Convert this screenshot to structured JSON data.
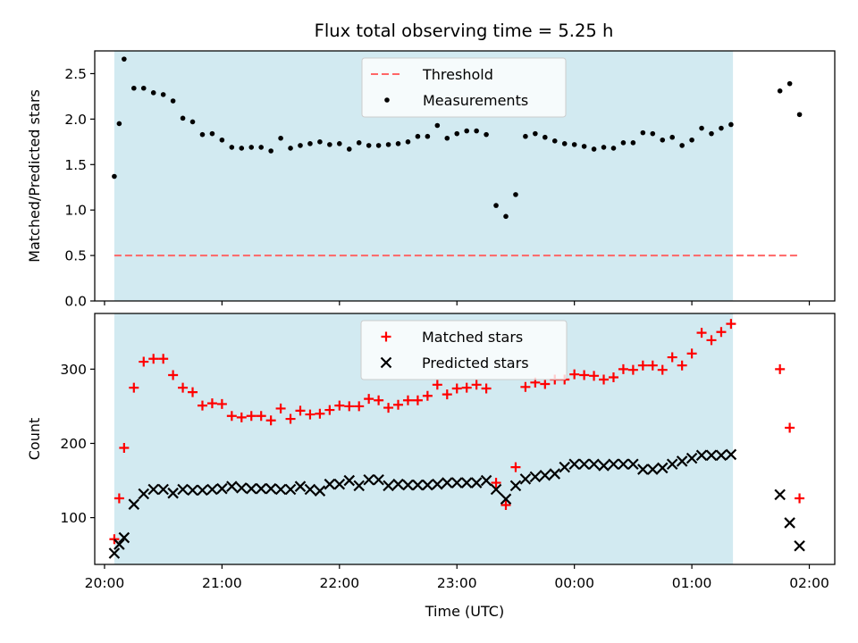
{
  "title": "Flux total observing time = 5.25 h",
  "colors": {
    "span": "#add8e6",
    "threshold": "#ff6666",
    "measurement": "#000000",
    "matched": "#ff0000",
    "predicted": "#000000"
  },
  "chart_data": [
    {
      "type": "scatter",
      "ylabel": "Matched/Predicted stars",
      "ylim": [
        0,
        2.75
      ],
      "yticks": [
        "0.0",
        "0.5",
        "1.0",
        "1.5",
        "2.0",
        "2.5"
      ],
      "xlim": [
        "19:55",
        "02:13"
      ],
      "xticks": [
        "20:00",
        "21:00",
        "22:00",
        "23:00",
        "00:00",
        "01:00",
        "02:00"
      ],
      "shaded_span": [
        "20:05",
        "01:21"
      ],
      "legend": {
        "position": "top-center",
        "entries": [
          "Threshold",
          "Measurements"
        ]
      },
      "threshold": {
        "name": "Threshold",
        "y": 0.5,
        "x": [
          "20:05",
          "01:55"
        ],
        "style": "dashed"
      },
      "series": [
        {
          "name": "Measurements",
          "marker": "dot",
          "points": [
            [
              "20:05",
              1.37
            ],
            [
              "20:07.5",
              1.95
            ],
            [
              "20:10",
              2.66
            ],
            [
              "20:15",
              2.34
            ],
            [
              "20:20",
              2.34
            ],
            [
              "20:25",
              2.29
            ],
            [
              "20:30",
              2.27
            ],
            [
              "20:35",
              2.2
            ],
            [
              "20:40",
              2.01
            ],
            [
              "20:45",
              1.97
            ],
            [
              "20:50",
              1.83
            ],
            [
              "20:55",
              1.84
            ],
            [
              "21:00",
              1.77
            ],
            [
              "21:05",
              1.69
            ],
            [
              "21:10",
              1.68
            ],
            [
              "21:15",
              1.69
            ],
            [
              "21:20",
              1.69
            ],
            [
              "21:25",
              1.65
            ],
            [
              "21:30",
              1.79
            ],
            [
              "21:35",
              1.68
            ],
            [
              "21:40",
              1.71
            ],
            [
              "21:45",
              1.73
            ],
            [
              "21:50",
              1.75
            ],
            [
              "21:55",
              1.72
            ],
            [
              "22:00",
              1.73
            ],
            [
              "22:05",
              1.67
            ],
            [
              "22:10",
              1.74
            ],
            [
              "22:15",
              1.71
            ],
            [
              "22:20",
              1.71
            ],
            [
              "22:25",
              1.72
            ],
            [
              "22:30",
              1.73
            ],
            [
              "22:35",
              1.75
            ],
            [
              "22:40",
              1.81
            ],
            [
              "22:45",
              1.81
            ],
            [
              "22:50",
              1.93
            ],
            [
              "22:55",
              1.79
            ],
            [
              "23:00",
              1.84
            ],
            [
              "23:05",
              1.87
            ],
            [
              "23:10",
              1.87
            ],
            [
              "23:15",
              1.83
            ],
            [
              "23:20",
              1.05
            ],
            [
              "23:25",
              0.93
            ],
            [
              "23:30",
              1.17
            ],
            [
              "23:35",
              1.81
            ],
            [
              "23:40",
              1.84
            ],
            [
              "23:45",
              1.8
            ],
            [
              "23:50",
              1.76
            ],
            [
              "23:55",
              1.73
            ],
            [
              "00:00",
              1.72
            ],
            [
              "00:05",
              1.7
            ],
            [
              "00:10",
              1.67
            ],
            [
              "00:15",
              1.69
            ],
            [
              "00:20",
              1.68
            ],
            [
              "00:25",
              1.74
            ],
            [
              "00:30",
              1.74
            ],
            [
              "00:35",
              1.85
            ],
            [
              "00:40",
              1.84
            ],
            [
              "00:45",
              1.77
            ],
            [
              "00:50",
              1.8
            ],
            [
              "00:55",
              1.71
            ],
            [
              "01:00",
              1.77
            ],
            [
              "01:05",
              1.9
            ],
            [
              "01:10",
              1.84
            ],
            [
              "01:15",
              1.9
            ],
            [
              "01:20",
              1.94
            ],
            [
              "01:45",
              2.31
            ],
            [
              "01:50",
              2.39
            ],
            [
              "01:55",
              2.05
            ]
          ]
        }
      ]
    },
    {
      "type": "scatter",
      "xlabel": "Time (UTC)",
      "ylabel": "Count",
      "ylim": [
        37,
        375
      ],
      "yticks": [
        "100",
        "200",
        "300"
      ],
      "xlim": [
        "19:55",
        "02:13"
      ],
      "xticks": [
        "20:00",
        "21:00",
        "22:00",
        "23:00",
        "00:00",
        "01:00",
        "02:00"
      ],
      "shaded_span": [
        "20:05",
        "01:21"
      ],
      "legend": {
        "position": "top-center",
        "entries": [
          "Matched stars",
          "Predicted stars"
        ]
      },
      "series": [
        {
          "name": "Matched stars",
          "marker": "plus",
          "points": [
            [
              "20:05",
              71
            ],
            [
              "20:07.5",
              126
            ],
            [
              "20:10",
              194
            ],
            [
              "20:15",
              275
            ],
            [
              "20:20",
              310
            ],
            [
              "20:25",
              314
            ],
            [
              "20:30",
              314
            ],
            [
              "20:35",
              292
            ],
            [
              "20:40",
              275
            ],
            [
              "20:45",
              269
            ],
            [
              "20:50",
              251
            ],
            [
              "20:55",
              254
            ],
            [
              "21:00",
              253
            ],
            [
              "21:05",
              237
            ],
            [
              "21:10",
              235
            ],
            [
              "21:15",
              237
            ],
            [
              "21:20",
              237
            ],
            [
              "21:25",
              231
            ],
            [
              "21:30",
              247
            ],
            [
              "21:35",
              233
            ],
            [
              "21:40",
              244
            ],
            [
              "21:45",
              239
            ],
            [
              "21:50",
              240
            ],
            [
              "21:55",
              245
            ],
            [
              "22:00",
              251
            ],
            [
              "22:05",
              250
            ],
            [
              "22:10",
              250
            ],
            [
              "22:15",
              260
            ],
            [
              "22:20",
              258
            ],
            [
              "22:25",
              248
            ],
            [
              "22:30",
              252
            ],
            [
              "22:35",
              258
            ],
            [
              "22:40",
              258
            ],
            [
              "22:45",
              264
            ],
            [
              "22:50",
              279
            ],
            [
              "22:55",
              266
            ],
            [
              "23:00",
              274
            ],
            [
              "23:05",
              275
            ],
            [
              "23:10",
              279
            ],
            [
              "23:15",
              274
            ],
            [
              "23:20",
              147
            ],
            [
              "23:25",
              117
            ],
            [
              "23:30",
              168
            ],
            [
              "23:35",
              276
            ],
            [
              "23:40",
              282
            ],
            [
              "23:45",
              280
            ],
            [
              "23:50",
              286
            ],
            [
              "23:55",
              286
            ],
            [
              "00:00",
              293
            ],
            [
              "00:05",
              292
            ],
            [
              "00:10",
              291
            ],
            [
              "00:15",
              286
            ],
            [
              "00:20",
              289
            ],
            [
              "00:25",
              300
            ],
            [
              "00:30",
              299
            ],
            [
              "00:35",
              305
            ],
            [
              "00:40",
              305
            ],
            [
              "00:45",
              299
            ],
            [
              "00:50",
              316
            ],
            [
              "00:55",
              305
            ],
            [
              "01:00",
              321
            ],
            [
              "01:05",
              349
            ],
            [
              "01:10",
              339
            ],
            [
              "01:15",
              350
            ],
            [
              "01:20",
              361
            ],
            [
              "01:45",
              300
            ],
            [
              "01:50",
              221
            ],
            [
              "01:55",
              126
            ]
          ]
        },
        {
          "name": "Predicted stars",
          "marker": "x",
          "points": [
            [
              "20:05",
              52
            ],
            [
              "20:07.5",
              64
            ],
            [
              "20:10",
              73
            ],
            [
              "20:15",
              118
            ],
            [
              "20:20",
              132
            ],
            [
              "20:25",
              138
            ],
            [
              "20:30",
              138
            ],
            [
              "20:35",
              133
            ],
            [
              "20:40",
              138
            ],
            [
              "20:45",
              137
            ],
            [
              "20:50",
              137
            ],
            [
              "20:55",
              138
            ],
            [
              "21:00",
              139
            ],
            [
              "21:05",
              142
            ],
            [
              "21:10",
              140
            ],
            [
              "21:15",
              139
            ],
            [
              "21:20",
              139
            ],
            [
              "21:25",
              139
            ],
            [
              "21:30",
              138
            ],
            [
              "21:35",
              138
            ],
            [
              "21:40",
              142
            ],
            [
              "21:45",
              138
            ],
            [
              "21:50",
              136
            ],
            [
              "21:55",
              145
            ],
            [
              "22:00",
              145
            ],
            [
              "22:05",
              150
            ],
            [
              "22:10",
              143
            ],
            [
              "22:15",
              151
            ],
            [
              "22:20",
              151
            ],
            [
              "22:25",
              143
            ],
            [
              "22:30",
              145
            ],
            [
              "22:35",
              144
            ],
            [
              "22:40",
              144
            ],
            [
              "22:45",
              144
            ],
            [
              "22:50",
              145
            ],
            [
              "22:55",
              147
            ],
            [
              "23:00",
              147
            ],
            [
              "23:05",
              147
            ],
            [
              "23:10",
              147
            ],
            [
              "23:15",
              150
            ],
            [
              "23:20",
              138
            ],
            [
              "23:25",
              125
            ],
            [
              "23:30",
              143
            ],
            [
              "23:35",
              152
            ],
            [
              "23:40",
              155
            ],
            [
              "23:45",
              157
            ],
            [
              "23:50",
              159
            ],
            [
              "23:55",
              168
            ],
            [
              "00:00",
              172
            ],
            [
              "00:05",
              172
            ],
            [
              "00:10",
              172
            ],
            [
              "00:15",
              170
            ],
            [
              "00:20",
              172
            ],
            [
              "00:25",
              172
            ],
            [
              "00:30",
              172
            ],
            [
              "00:35",
              165
            ],
            [
              "00:40",
              165
            ],
            [
              "00:45",
              167
            ],
            [
              "00:50",
              172
            ],
            [
              "00:55",
              176
            ],
            [
              "01:00",
              180
            ],
            [
              "01:05",
              184
            ],
            [
              "01:10",
              184
            ],
            [
              "01:15",
              184
            ],
            [
              "01:20",
              185
            ],
            [
              "01:45",
              131
            ],
            [
              "01:50",
              93
            ],
            [
              "01:55",
              62
            ]
          ]
        }
      ]
    }
  ]
}
